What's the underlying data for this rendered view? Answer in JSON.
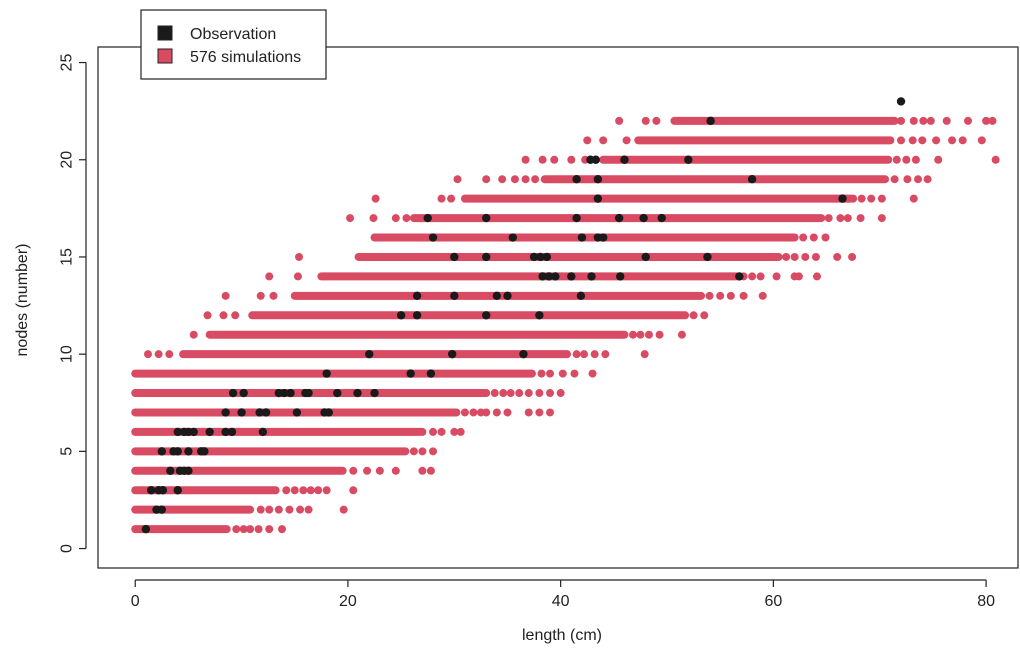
{
  "chart_data": {
    "type": "scatter",
    "title": "",
    "xlabel": "length (cm)",
    "ylabel": "nodes (number)",
    "xlim": [
      -3.5,
      83
    ],
    "ylim": [
      -1,
      25.8
    ],
    "x_ticks": [
      0,
      20,
      40,
      60,
      80
    ],
    "y_ticks": [
      0,
      5,
      10,
      15,
      20,
      25
    ],
    "x_tick_labels": [
      "0",
      "20",
      "40",
      "60",
      "80"
    ],
    "y_tick_labels": [
      "0",
      "5",
      "10",
      "15",
      "20",
      "25"
    ],
    "grid": false,
    "legend_position": "top-left",
    "legend": [
      {
        "label": "Observation",
        "color": "#1a1a1a"
      },
      {
        "label": "576 simulations",
        "color": "#d94a63"
      }
    ],
    "simulation_bands": [
      {
        "y": 1,
        "x_min": 0.0,
        "x_max": 8.6,
        "outliers": [
          9.5,
          10.2,
          10.8,
          11.6,
          12.6,
          13.8
        ]
      },
      {
        "y": 2,
        "x_min": 0.0,
        "x_max": 10.8,
        "outliers": [
          11.8,
          12.6,
          13.5,
          14.5,
          15.5,
          16.3,
          19.6
        ]
      },
      {
        "y": 3,
        "x_min": 0.0,
        "x_max": 13.2,
        "outliers": [
          14.2,
          15.0,
          15.8,
          16.5,
          17.2,
          18.0,
          20.5
        ]
      },
      {
        "y": 4,
        "x_min": 0.0,
        "x_max": 19.5,
        "outliers": [
          20.5,
          21.8,
          23.0,
          24.5,
          27.0,
          27.8
        ]
      },
      {
        "y": 5,
        "x_min": 0.0,
        "x_max": 25.4,
        "outliers": [
          26.2,
          27.0,
          28.0
        ]
      },
      {
        "y": 6,
        "x_min": 0.0,
        "x_max": 27.0,
        "outliers": [
          28.0,
          28.8,
          30.0,
          30.6
        ]
      },
      {
        "y": 7,
        "x_min": 0.0,
        "x_max": 30.2,
        "outliers": [
          31.0,
          31.8,
          32.5,
          33.0,
          34.0,
          35.0,
          37.0,
          38.0,
          39.0
        ]
      },
      {
        "y": 8,
        "x_min": 0.0,
        "x_max": 33.0,
        "outliers": [
          33.8,
          34.6,
          35.3,
          36.1,
          37.0,
          38.0,
          39.0,
          40.0
        ]
      },
      {
        "y": 9,
        "x_min": 0.0,
        "x_max": 37.3,
        "outliers": [
          38.2,
          39.0,
          40.2,
          41.3,
          43.0
        ]
      },
      {
        "y": 10,
        "x_min": 4.5,
        "x_max": 40.6,
        "outliers": [
          1.2,
          2.2,
          3.2,
          41.5,
          42.2,
          43.2,
          44.2,
          47.9
        ]
      },
      {
        "y": 11,
        "x_min": 7.0,
        "x_max": 46.0,
        "outliers": [
          5.5,
          46.8,
          47.5,
          48.3,
          49.3,
          51.4
        ]
      },
      {
        "y": 12,
        "x_min": 11.0,
        "x_max": 51.7,
        "outliers": [
          6.8,
          8.3,
          9.4,
          52.5,
          53.5
        ]
      },
      {
        "y": 13,
        "x_min": 15.0,
        "x_max": 53.2,
        "outliers": [
          8.5,
          11.8,
          13.0,
          54.0,
          55.0,
          56.0,
          57.2,
          59.0
        ]
      },
      {
        "y": 14,
        "x_min": 17.5,
        "x_max": 56.5,
        "outliers": [
          12.6,
          15.3,
          57.2,
          58.0,
          58.8,
          60.3,
          62.0,
          62.4,
          64.1
        ]
      },
      {
        "y": 15,
        "x_min": 21.0,
        "x_max": 60.5,
        "outliers": [
          15.4,
          61.2,
          62.0,
          63.0,
          64.0,
          66.0,
          67.4
        ]
      },
      {
        "y": 16,
        "x_min": 22.5,
        "x_max": 62.0,
        "outliers": [
          62.8,
          63.8,
          64.9
        ]
      },
      {
        "y": 17,
        "x_min": 26.2,
        "x_max": 64.5,
        "outliers": [
          20.2,
          22.4,
          24.5,
          25.5,
          65.2,
          66.3,
          67.0,
          68.2,
          70.2
        ]
      },
      {
        "y": 18,
        "x_min": 31.0,
        "x_max": 67.5,
        "outliers": [
          22.6,
          28.8,
          29.7,
          68.3,
          69.2,
          70.2,
          73.2
        ]
      },
      {
        "y": 19,
        "x_min": 38.5,
        "x_max": 70.5,
        "outliers": [
          30.3,
          33.0,
          34.5,
          35.7,
          36.7,
          37.6,
          71.4,
          72.6,
          73.6,
          74.5
        ]
      },
      {
        "y": 20,
        "x_min": 44.0,
        "x_max": 70.8,
        "outliers": [
          36.7,
          38.3,
          39.4,
          41.0,
          42.3,
          71.6,
          72.5,
          73.4,
          75.5,
          80.9
        ]
      },
      {
        "y": 21,
        "x_min": 47.3,
        "x_max": 71.0,
        "outliers": [
          42.5,
          44.0,
          46.2,
          72.0,
          73.1,
          74.0,
          75.3,
          76.8,
          77.8,
          79.6
        ]
      },
      {
        "y": 22,
        "x_min": 50.7,
        "x_max": 71.4,
        "outliers": [
          45.5,
          48.0,
          49.0,
          72.0,
          73.2,
          74.1,
          74.8,
          76.3,
          78.3,
          80.0,
          80.6
        ]
      }
    ],
    "observations": [
      [
        1.0,
        1
      ],
      [
        2.0,
        2
      ],
      [
        2.5,
        2
      ],
      [
        1.5,
        3
      ],
      [
        2.2,
        3
      ],
      [
        2.6,
        3
      ],
      [
        4.0,
        3
      ],
      [
        3.3,
        4
      ],
      [
        4.2,
        4
      ],
      [
        4.6,
        4
      ],
      [
        5.0,
        4
      ],
      [
        2.5,
        5
      ],
      [
        3.6,
        5
      ],
      [
        4.0,
        5
      ],
      [
        5.0,
        5
      ],
      [
        6.2,
        5
      ],
      [
        6.5,
        5
      ],
      [
        4.0,
        6
      ],
      [
        4.6,
        6
      ],
      [
        5.0,
        6
      ],
      [
        5.5,
        6
      ],
      [
        7.0,
        6
      ],
      [
        8.5,
        6
      ],
      [
        9.1,
        6
      ],
      [
        12.0,
        6
      ],
      [
        8.5,
        7
      ],
      [
        10.0,
        7
      ],
      [
        11.7,
        7
      ],
      [
        12.3,
        7
      ],
      [
        15.2,
        7
      ],
      [
        17.8,
        7
      ],
      [
        18.2,
        7
      ],
      [
        9.2,
        8
      ],
      [
        10.2,
        8
      ],
      [
        13.5,
        8
      ],
      [
        14.0,
        8
      ],
      [
        14.6,
        8
      ],
      [
        16.0,
        8
      ],
      [
        16.3,
        8
      ],
      [
        19.0,
        8
      ],
      [
        20.9,
        8
      ],
      [
        22.5,
        8
      ],
      [
        18.0,
        9
      ],
      [
        25.9,
        9
      ],
      [
        27.8,
        9
      ],
      [
        22.0,
        10
      ],
      [
        29.8,
        10
      ],
      [
        36.5,
        10
      ],
      [
        25.0,
        12
      ],
      [
        26.5,
        12
      ],
      [
        33.0,
        12
      ],
      [
        38.0,
        12
      ],
      [
        26.5,
        13
      ],
      [
        30.0,
        13
      ],
      [
        34.0,
        13
      ],
      [
        35.0,
        13
      ],
      [
        41.9,
        13
      ],
      [
        38.3,
        14
      ],
      [
        38.9,
        14
      ],
      [
        39.5,
        14
      ],
      [
        41.0,
        14
      ],
      [
        42.9,
        14
      ],
      [
        45.6,
        14
      ],
      [
        56.8,
        14
      ],
      [
        30.0,
        15
      ],
      [
        33.0,
        15
      ],
      [
        37.5,
        15
      ],
      [
        38.1,
        15
      ],
      [
        38.7,
        15
      ],
      [
        48.0,
        15
      ],
      [
        53.8,
        15
      ],
      [
        28.0,
        16
      ],
      [
        35.5,
        16
      ],
      [
        42.0,
        16
      ],
      [
        43.5,
        16
      ],
      [
        44.0,
        16
      ],
      [
        27.5,
        17
      ],
      [
        33.0,
        17
      ],
      [
        41.5,
        17
      ],
      [
        45.5,
        17
      ],
      [
        47.8,
        17
      ],
      [
        49.5,
        17
      ],
      [
        43.5,
        18
      ],
      [
        66.5,
        18
      ],
      [
        41.5,
        19
      ],
      [
        43.5,
        19
      ],
      [
        58.0,
        19
      ],
      [
        42.8,
        20
      ],
      [
        43.3,
        20
      ],
      [
        46.0,
        20
      ],
      [
        52.0,
        20
      ],
      [
        54.1,
        22
      ],
      [
        72.0,
        23
      ]
    ]
  }
}
